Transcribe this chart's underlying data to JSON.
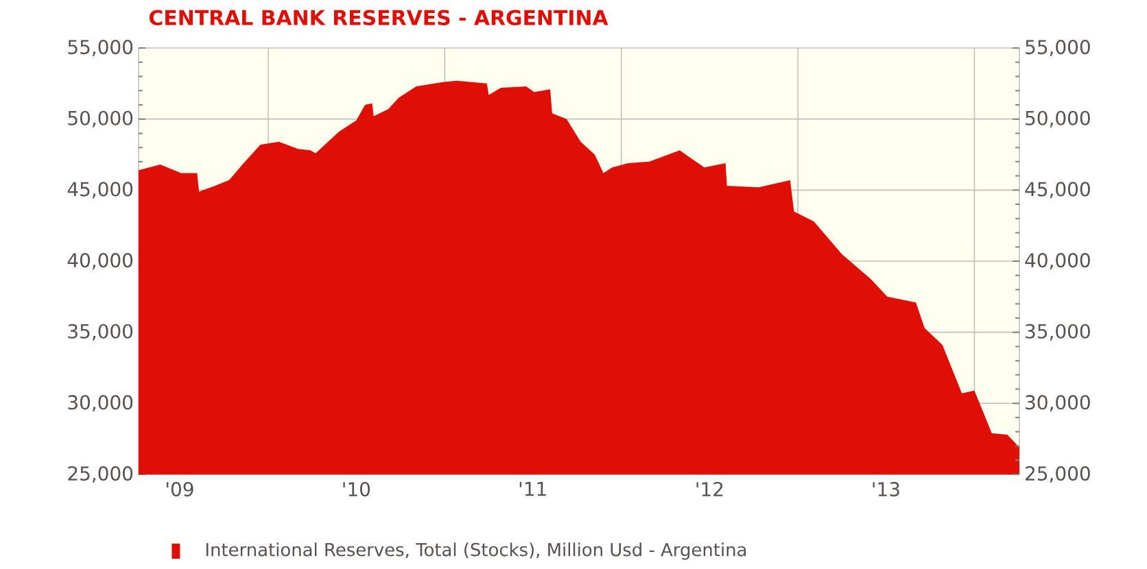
{
  "chart_data": {
    "type": "area",
    "title": "CENTRAL BANK RESERVES - ARGENTINA",
    "legend": "bottom",
    "grid": true,
    "xlim": [
      "2009-04-08",
      "2014-04-04"
    ],
    "xticks": [
      {
        "value": "2009-07-02",
        "label": "'09"
      },
      {
        "value": "2010-01-01",
        "label": null
      },
      {
        "value": "2010-07-02",
        "label": "'10"
      },
      {
        "value": "2011-01-01",
        "label": null
      },
      {
        "value": "2011-07-02",
        "label": "'11"
      },
      {
        "value": "2012-01-01",
        "label": null
      },
      {
        "value": "2012-07-02",
        "label": "'12"
      },
      {
        "value": "2013-01-01",
        "label": null
      },
      {
        "value": "2013-07-02",
        "label": "'13"
      },
      {
        "value": "2014-01-01",
        "label": null
      }
    ],
    "ylim": [
      25000,
      55000
    ],
    "yticks": [
      {
        "value": 25000,
        "label": "25,000"
      },
      {
        "value": 30000,
        "label": "30,000"
      },
      {
        "value": 35000,
        "label": "35,000"
      },
      {
        "value": 40000,
        "label": "40,000"
      },
      {
        "value": 45000,
        "label": "45,000"
      },
      {
        "value": 50000,
        "label": "50,000"
      },
      {
        "value": 55000,
        "label": "55,000"
      }
    ],
    "y2lim": [
      25000,
      55000
    ],
    "y2ticks": [
      {
        "value": 25000,
        "label": "25,000"
      },
      {
        "value": 30000,
        "label": "30,000"
      },
      {
        "value": 35000,
        "label": "35,000"
      },
      {
        "value": 40000,
        "label": "40,000"
      },
      {
        "value": 45000,
        "label": "45,000"
      },
      {
        "value": 50000,
        "label": "50,000"
      },
      {
        "value": 55000,
        "label": "55,000"
      }
    ],
    "series": [
      {
        "name": "International Reserves, Total (Stocks), Million Usd - Argentina",
        "color": "#e00f05",
        "x": [
          "2009-04-08",
          "2009-05-23",
          "2009-07-05",
          "2009-08-07",
          "2009-08-11",
          "2009-09-13",
          "2009-10-12",
          "2009-11-14",
          "2009-12-16",
          "2010-01-23",
          "2010-03-04",
          "2010-03-29",
          "2010-04-09",
          "2010-05-27",
          "2010-07-02",
          "2010-07-20",
          "2010-08-04",
          "2010-08-07",
          "2010-09-06",
          "2010-09-28",
          "2010-11-03",
          "2010-12-28",
          "2011-01-26",
          "2011-03-29",
          "2011-04-02",
          "2011-04-27",
          "2011-06-18",
          "2011-07-05",
          "2011-08-07",
          "2011-08-11",
          "2011-09-10",
          "2011-10-09",
          "2011-11-07",
          "2011-11-25",
          "2011-12-13",
          "2012-01-15",
          "2012-02-28",
          "2012-05-01",
          "2012-06-21",
          "2012-08-04",
          "2012-08-07",
          "2012-10-12",
          "2012-12-16",
          "2012-12-24",
          "2013-02-03",
          "2013-04-02",
          "2013-05-30",
          "2013-07-05",
          "2013-09-02",
          "2013-09-20",
          "2013-10-27",
          "2013-12-06",
          "2014-01-01",
          "2014-02-06",
          "2014-03-10",
          "2014-04-04"
        ],
        "values": [
          46400,
          46800,
          46200,
          46200,
          44900,
          45300,
          45700,
          47000,
          48200,
          48400,
          47900,
          47800,
          47600,
          49100,
          49900,
          51000,
          51100,
          50200,
          50700,
          51500,
          52300,
          52600,
          52700,
          52500,
          51700,
          52200,
          52300,
          51900,
          52100,
          50400,
          50000,
          48400,
          47500,
          46200,
          46600,
          46900,
          47000,
          47800,
          46600,
          46900,
          45300,
          45200,
          45700,
          43500,
          42800,
          40500,
          38800,
          37500,
          37100,
          35300,
          34100,
          30700,
          30900,
          27900,
          27800,
          26900
        ]
      }
    ]
  }
}
